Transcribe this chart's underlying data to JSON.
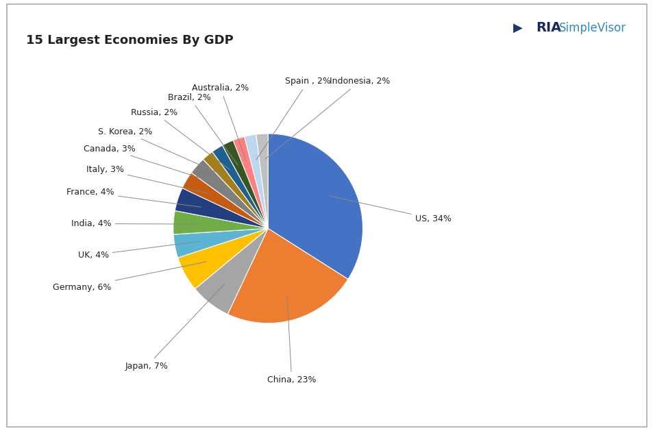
{
  "title": "15 Largest Economies By GDP",
  "labels": [
    "US",
    "China",
    "Japan",
    "Germany",
    "UK",
    "India",
    "France",
    "Italy",
    "Canada",
    "S. Korea",
    "Russia",
    "Brazil",
    "Australia",
    "Spain ",
    "Indonesia"
  ],
  "values": [
    34,
    23,
    7,
    6,
    4,
    4,
    4,
    3,
    3,
    2,
    2,
    2,
    2,
    2,
    2
  ],
  "colors": [
    "#4472C4",
    "#ED7D31",
    "#A5A5A5",
    "#FFC000",
    "#5BB4D4",
    "#70AD47",
    "#243F7F",
    "#C55A11",
    "#7F7F7F",
    "#A37E1A",
    "#1F6090",
    "#375623",
    "#FF8080",
    "#BDD7EE",
    "#C0C0C0"
  ],
  "label_display": [
    "US, 34%",
    "China, 23%",
    "Japan, 7%",
    "Germany, 6%",
    "UK, 4%",
    "India, 4%",
    "France, 4%",
    "Italy, 3%",
    "Canada, 3%",
    "S. Korea, 2%",
    "Russia, 2%",
    "Brazil, 2%",
    "Australia, 2%",
    "Spain , 2%",
    "Indonesia, 2%"
  ],
  "background_color": "#FFFFFF",
  "title_fontsize": 13,
  "label_fontsize": 9,
  "ria_text": "RIA",
  "simplevisor_text": "SimpleVisor",
  "border_color": "#AAAAAA"
}
